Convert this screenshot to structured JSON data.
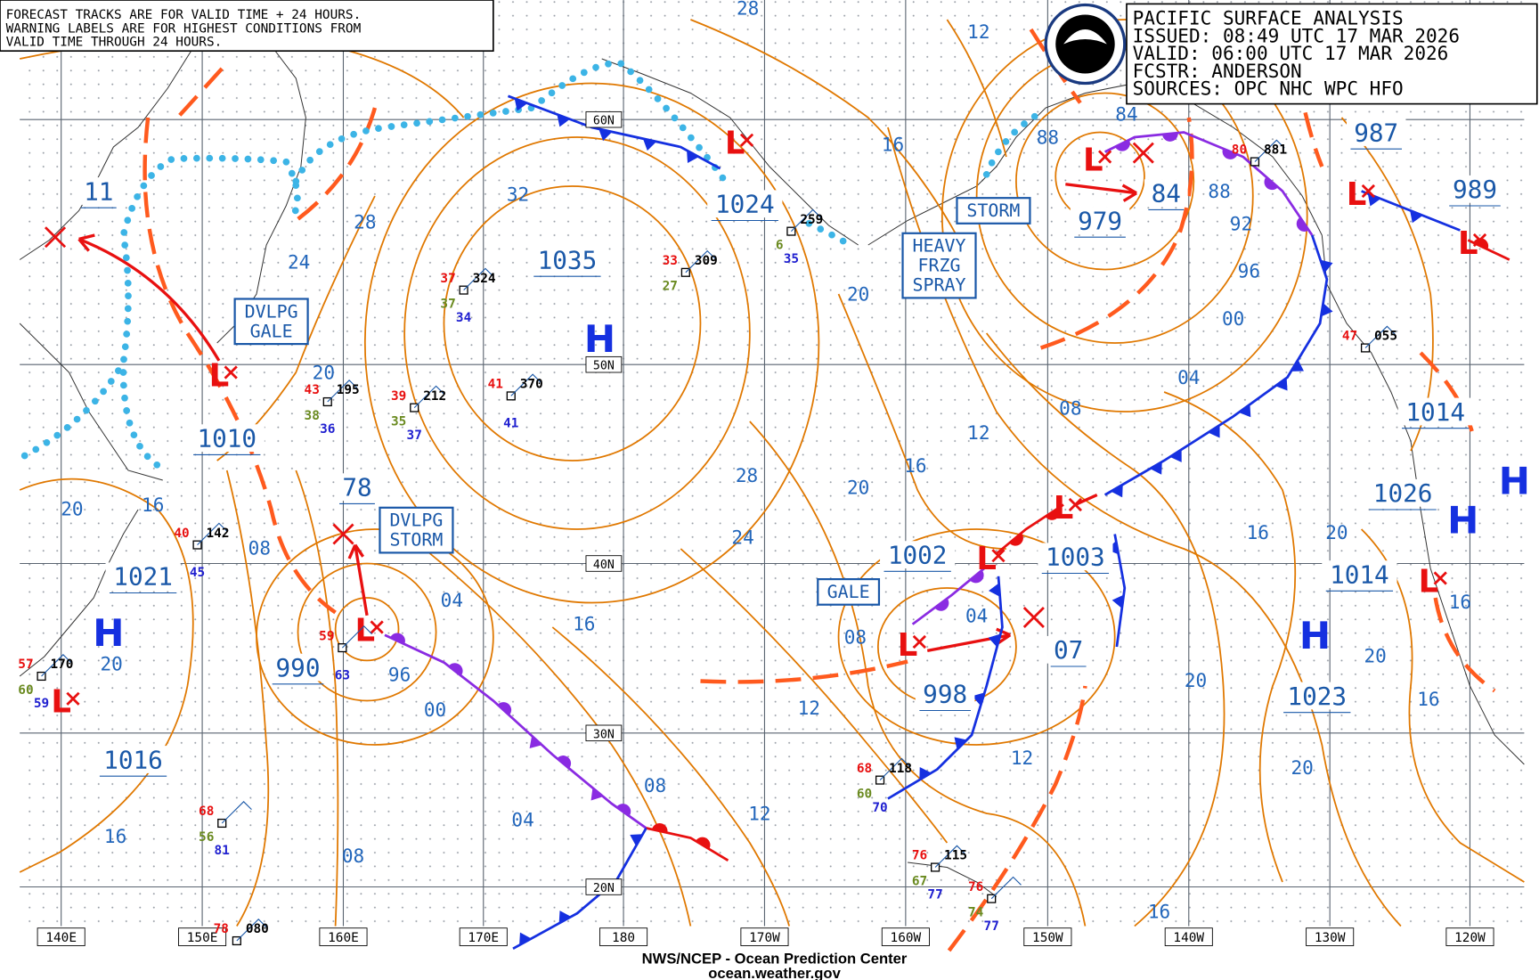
{
  "notice": [
    "FORECAST TRACKS ARE FOR VALID TIME + 24 HOURS.",
    "WARNING LABELS ARE FOR HIGHEST CONDITIONS FROM",
    "VALID TIME THROUGH 24 HOURS."
  ],
  "info": [
    "PACIFIC SURFACE ANALYSIS",
    "ISSUED: 08:49 UTC 17 MAR 2026",
    "VALID:  06:00 UTC 17 MAR 2026",
    "FCSTR:  ANDERSON",
    "SOURCES:  OPC NHC WPC HFO"
  ],
  "lat_labels": [
    "60N",
    "50N",
    "40N",
    "30N",
    "20N"
  ],
  "lon_labels": [
    "140E",
    "150E",
    "160E",
    "170E",
    "180",
    "170W",
    "160W",
    "150W",
    "140W",
    "130W",
    "120W"
  ],
  "symbols": [
    "L",
    "L",
    "L",
    "L",
    "L",
    "L",
    "L",
    "L",
    "L",
    "L",
    "L",
    "H",
    "H",
    "H",
    "H",
    "H"
  ],
  "pressure_labels": [
    "11",
    "1024",
    "1035",
    "979",
    "84",
    "987",
    "989",
    "1010",
    "78",
    "1021",
    "990",
    "1016",
    "1002",
    "1003",
    "07",
    "998",
    "1014",
    "1026",
    "1014",
    "1023"
  ],
  "isobar_labels": [
    "28",
    "12",
    "16",
    "88",
    "84",
    "88",
    "92",
    "96",
    "00",
    "32",
    "28",
    "24",
    "20",
    "20",
    "04",
    "08",
    "12",
    "16",
    "20",
    "28",
    "24",
    "16",
    "04",
    "96",
    "00",
    "20",
    "16",
    "08",
    "20",
    "08",
    "12",
    "04",
    "12",
    "16",
    "20",
    "20",
    "20",
    "16",
    "16",
    "20",
    "16",
    "08",
    "04",
    "12",
    "16",
    "08"
  ],
  "warnings": [
    [
      "DVLPG",
      "GALE"
    ],
    [
      "DVLPG",
      "STORM"
    ],
    [
      "STORM"
    ],
    [
      "HEAVY",
      "FRZG",
      "SPRAY"
    ],
    [
      "GALE"
    ]
  ],
  "stations": [
    {
      "id": "324",
      "temp": "37",
      "dew": "37",
      "pres": "34"
    },
    {
      "id": "309",
      "temp": "33",
      "dew": "27"
    },
    {
      "id": "370",
      "temp": "41",
      "pres": "41"
    },
    {
      "id": "212",
      "temp": "39",
      "dew": "35",
      "pres": "37"
    },
    {
      "id": "195",
      "temp": "43",
      "dew": "38",
      "pres": "36"
    },
    {
      "id": "142",
      "temp": "40",
      "pres": "45"
    },
    {
      "id": "118",
      "temp": "68",
      "dew": "60",
      "pres": "70"
    },
    {
      "id": "115",
      "temp": "76",
      "dew": "67",
      "pres": "77"
    },
    {
      "temp": "76",
      "dew": "74",
      "pres": "77"
    },
    {
      "id": "259",
      "dew": "6",
      "pres": "35"
    },
    {
      "temp": "68",
      "dew": "56",
      "pres": "81"
    },
    {
      "id": "080",
      "temp": "78"
    },
    {
      "id": "055",
      "temp": "47"
    },
    {
      "id": "881",
      "temp": "80"
    },
    {
      "temp": "59",
      "pres": "63"
    },
    {
      "id": "170",
      "temp": "57",
      "dew": "60",
      "pres": "59"
    }
  ],
  "footer": [
    "NWS/NCEP - Ocean Prediction Center",
    "ocean.weather.gov"
  ]
}
